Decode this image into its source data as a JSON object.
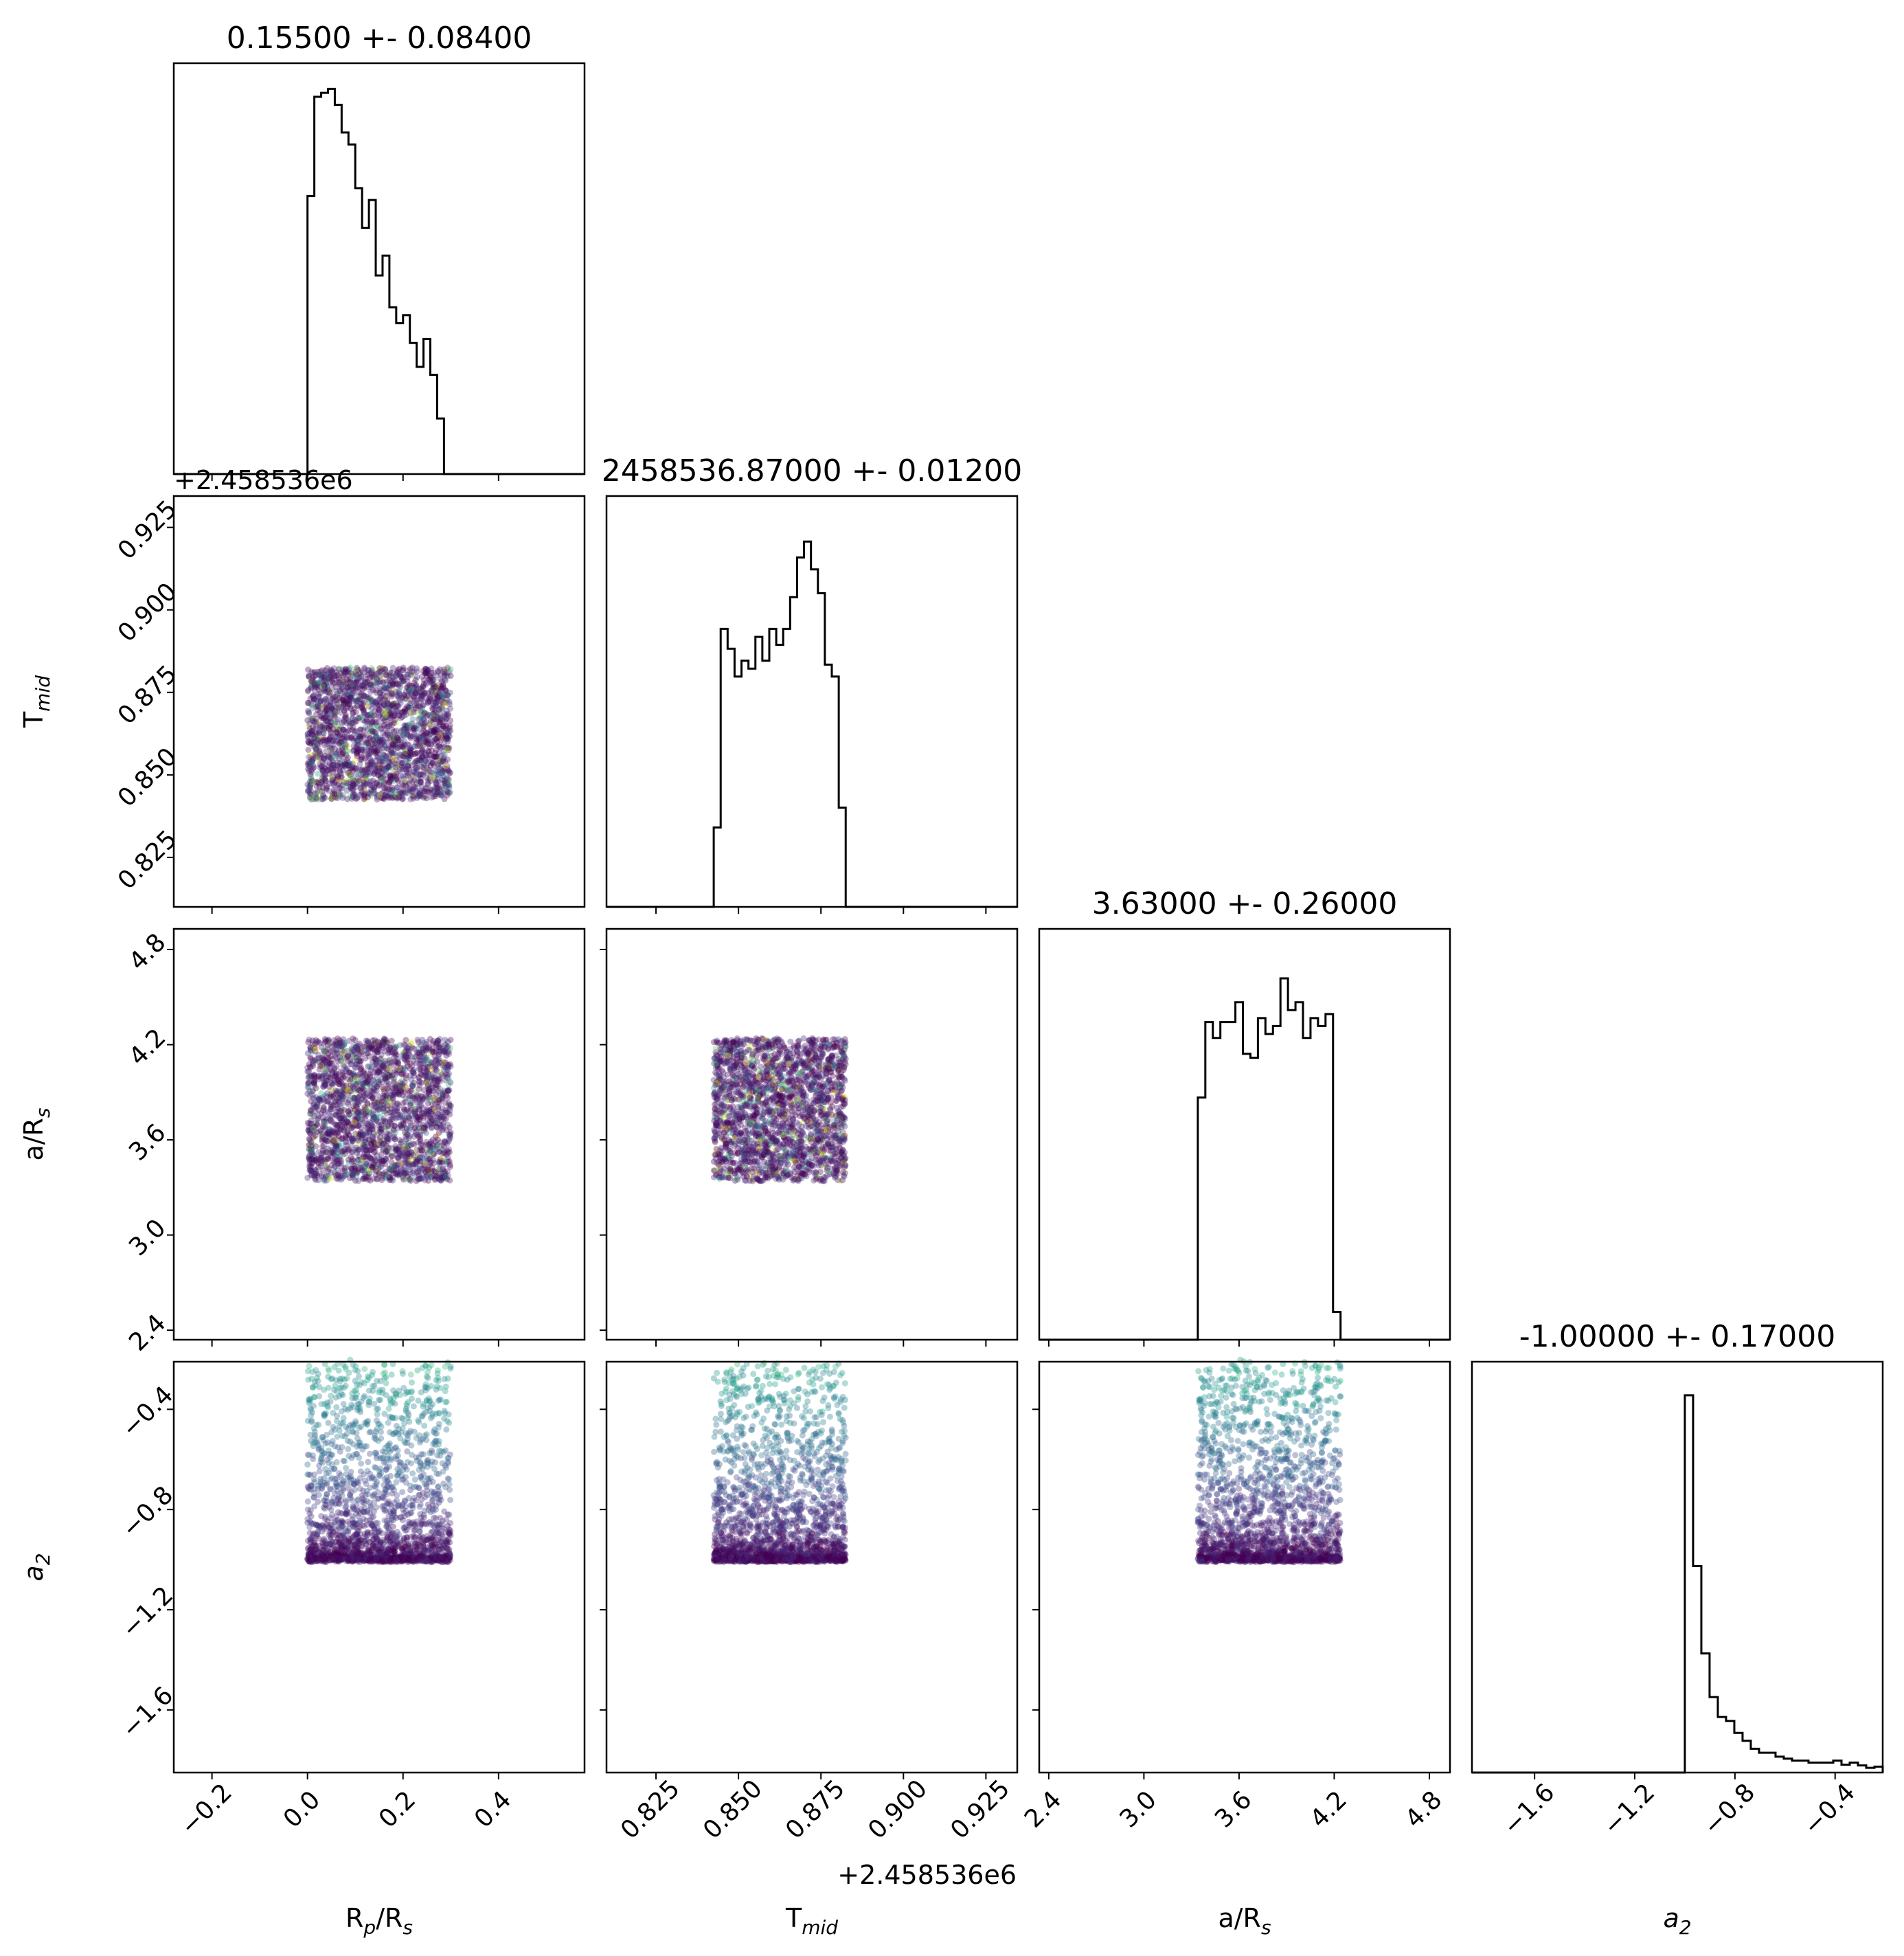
{
  "chart_data": {
    "type": "corner",
    "parameters": [
      {
        "key": "rp",
        "label": "Rₚ/Rₛ",
        "label_base": "R",
        "label_sub": "p",
        "label_rest": "/R",
        "label_sub2": "s",
        "title": "0.15500 +- 0.08400",
        "range": [
          -0.28,
          0.58
        ],
        "ticks": [
          -0.2,
          0.0,
          0.2,
          0.4
        ],
        "tick_labels": [
          "−0.2",
          "0.0",
          "0.2",
          "0.4"
        ],
        "sample_range": [
          0.0,
          0.3
        ]
      },
      {
        "key": "tmid",
        "label_base": "T",
        "label_sub": "mid",
        "title": "2458536.87000 +- 0.01200",
        "offset_text": "+2.458536e6",
        "range": [
          0.81,
          0.9345
        ],
        "ticks": [
          0.825,
          0.85,
          0.875,
          0.9,
          0.925
        ],
        "tick_labels": [
          "0.825",
          "0.850",
          "0.875",
          "0.900",
          "0.925"
        ],
        "sample_range": [
          0.8425,
          0.8825
        ]
      },
      {
        "key": "ars",
        "label_base": "a/R",
        "label_sub": "s",
        "title": "3.63000 +- 0.26000",
        "range": [
          2.34,
          4.93
        ],
        "ticks": [
          2.4,
          3.0,
          3.6,
          4.2,
          4.8
        ],
        "tick_labels": [
          "2.4",
          "3.0",
          "3.6",
          "4.2",
          "4.8"
        ],
        "sample_range": [
          3.34,
          4.24
        ]
      },
      {
        "key": "a2",
        "label_base": "a",
        "label_sub": "2",
        "italic": true,
        "title": "-1.00000 +- 0.17000",
        "range": [
          -1.85,
          -0.21
        ],
        "ticks": [
          -1.6,
          -1.2,
          -0.8,
          -0.4
        ],
        "tick_labels": [
          "−1.6",
          "−1.2",
          "−0.8",
          "−0.4"
        ],
        "sample_range": [
          -1.0,
          -0.21
        ]
      }
    ],
    "histograms": {
      "rp": {
        "edges_start": 0.0,
        "bin_width": 0.006,
        "counts": [
          0.7,
          0.95,
          0.96,
          0.97,
          0.93,
          0.86,
          0.83,
          0.72,
          0.62,
          0.69,
          0.5,
          0.55,
          0.42,
          0.38,
          0.4,
          0.33,
          0.27,
          0.34,
          0.25,
          0.14,
          0.0
        ],
        "note_bins": "bin width scaled per 20 bins over sample range"
      },
      "tmid": {
        "counts": [
          0.2,
          0.7,
          0.65,
          0.58,
          0.62,
          0.6,
          0.68,
          0.62,
          0.7,
          0.66,
          0.7,
          0.78,
          0.88,
          0.92,
          0.85,
          0.79,
          0.61,
          0.58,
          0.25
        ]
      },
      "ars": {
        "counts": [
          0.61,
          0.8,
          0.76,
          0.8,
          0.8,
          0.85,
          0.72,
          0.71,
          0.81,
          0.77,
          0.79,
          0.91,
          0.83,
          0.85,
          0.76,
          0.81,
          0.79,
          0.82,
          0.07
        ]
      },
      "a2": {
        "counts": [
          0.95,
          0.52,
          0.3,
          0.19,
          0.14,
          0.13,
          0.1,
          0.08,
          0.06,
          0.05,
          0.05,
          0.04,
          0.035,
          0.03,
          0.03,
          0.025,
          0.025,
          0.025,
          0.03,
          0.02,
          0.025,
          0.018,
          0.012,
          0.015
        ]
      }
    },
    "scatter_color_map": "viridis",
    "offset_text_rows": "+2.458536e6",
    "grid": false,
    "legend": "none"
  }
}
